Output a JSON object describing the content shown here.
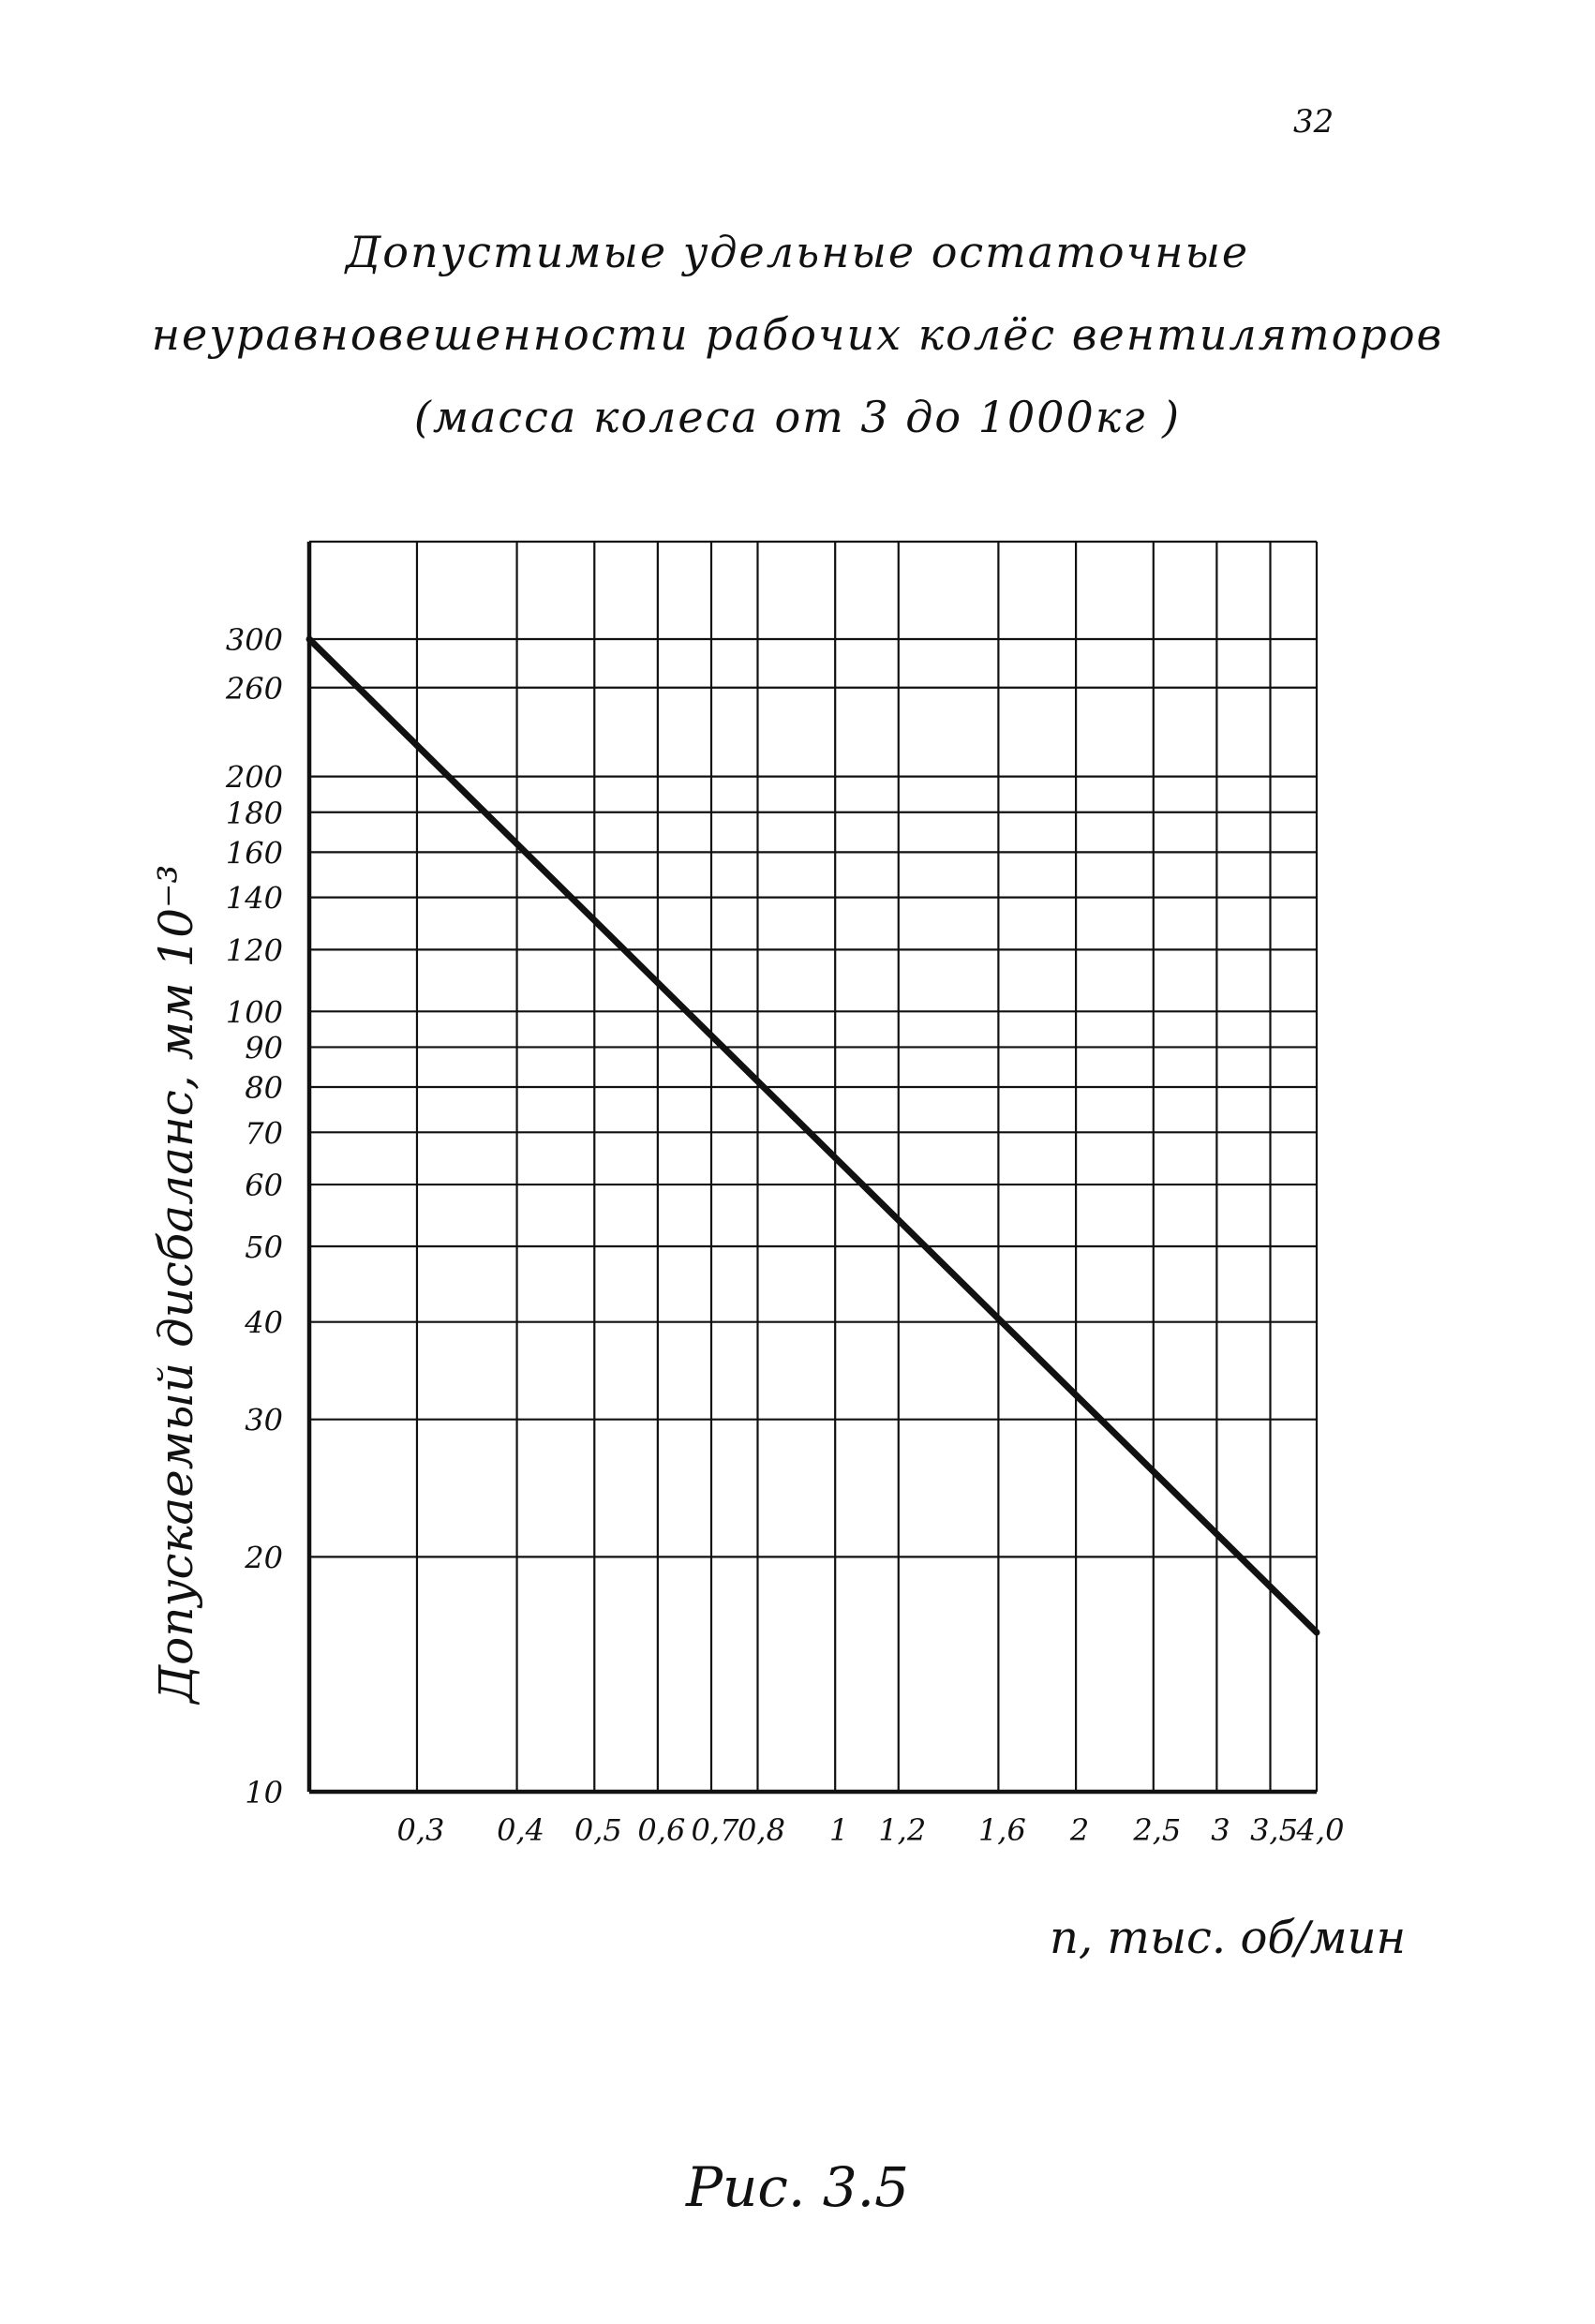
{
  "page_number": "32",
  "title_lines": [
    "Допустимые удельные остаточные",
    "неуравновешенности рабочих колёс вентиляторов",
    "(масса колеса от 3 до 1000кг )"
  ],
  "figure_caption": "Рис. 3.5",
  "chart_data": {
    "type": "line",
    "title": "",
    "xlabel": "n, тыс. об/мин",
    "ylabel": "Допускаемый дисбаланс, мм 10⁻³",
    "x_scale": "log",
    "y_scale": "log",
    "xlim": [
      0.22,
      4.0
    ],
    "ylim": [
      10,
      400
    ],
    "grid": true,
    "x_ticks": [
      0.3,
      0.4,
      0.5,
      0.6,
      0.7,
      0.8,
      1,
      1.2,
      1.6,
      2,
      2.5,
      3,
      3.5,
      4.0
    ],
    "x_tick_labels": [
      "0,3",
      "0,4",
      "0,5",
      "0,6",
      "0,7",
      "0,8",
      "1",
      "1,2",
      "1,6",
      "2",
      "2,5",
      "3",
      "3,5",
      "4,0"
    ],
    "y_ticks": [
      10,
      20,
      30,
      40,
      50,
      60,
      70,
      80,
      90,
      100,
      120,
      140,
      160,
      180,
      200,
      260,
      300
    ],
    "y_tick_labels": [
      "10",
      "20",
      "30",
      "40",
      "50",
      "60",
      "70",
      "80",
      "90",
      "100",
      "120",
      "140",
      "160",
      "180",
      "200",
      "260",
      "300"
    ],
    "series": [
      {
        "x": [
          0.22,
          4.0
        ],
        "y": [
          300,
          16
        ]
      }
    ]
  },
  "colors": {
    "ink": "#111111",
    "paper": "#ffffff"
  }
}
